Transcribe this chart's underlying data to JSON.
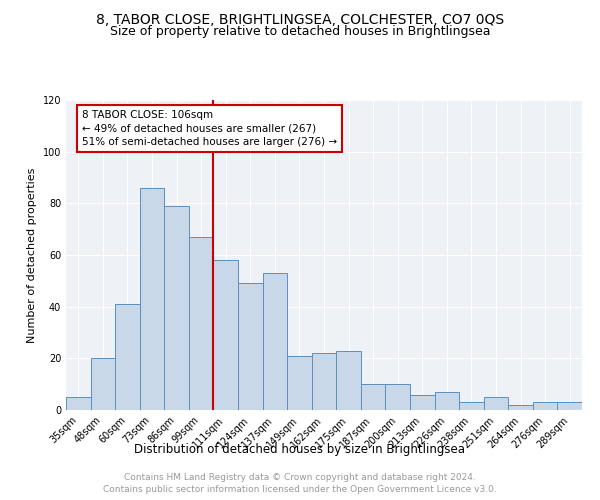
{
  "title": "8, TABOR CLOSE, BRIGHTLINGSEA, COLCHESTER, CO7 0QS",
  "subtitle": "Size of property relative to detached houses in Brightlingsea",
  "xlabel": "Distribution of detached houses by size in Brightlingsea",
  "ylabel": "Number of detached properties",
  "bar_labels": [
    "35sqm",
    "48sqm",
    "60sqm",
    "73sqm",
    "86sqm",
    "99sqm",
    "111sqm",
    "124sqm",
    "137sqm",
    "149sqm",
    "162sqm",
    "175sqm",
    "187sqm",
    "200sqm",
    "213sqm",
    "226sqm",
    "238sqm",
    "251sqm",
    "264sqm",
    "276sqm",
    "289sqm"
  ],
  "bar_values": [
    5,
    20,
    41,
    86,
    79,
    67,
    58,
    49,
    53,
    21,
    22,
    23,
    10,
    10,
    6,
    7,
    3,
    5,
    2,
    3,
    3
  ],
  "bar_color": "#c8d8e8",
  "bar_edge_color": "#5a8fbf",
  "vline_x_index": 6,
  "vline_color": "#cc0000",
  "annotation_line1": "8 TABOR CLOSE: 106sqm",
  "annotation_line2": "← 49% of detached houses are smaller (267)",
  "annotation_line3": "51% of semi-detached houses are larger (276) →",
  "annotation_box_color": "#cc0000",
  "ylim": [
    0,
    120
  ],
  "yticks": [
    0,
    20,
    40,
    60,
    80,
    100,
    120
  ],
  "footer_line1": "Contains HM Land Registry data © Crown copyright and database right 2024.",
  "footer_line2": "Contains public sector information licensed under the Open Government Licence v3.0.",
  "bg_color": "#eef2f7",
  "title_fontsize": 10,
  "subtitle_fontsize": 9,
  "xlabel_fontsize": 8.5,
  "ylabel_fontsize": 8,
  "tick_fontsize": 7,
  "footer_fontsize": 6.5,
  "annotation_fontsize": 7.5
}
